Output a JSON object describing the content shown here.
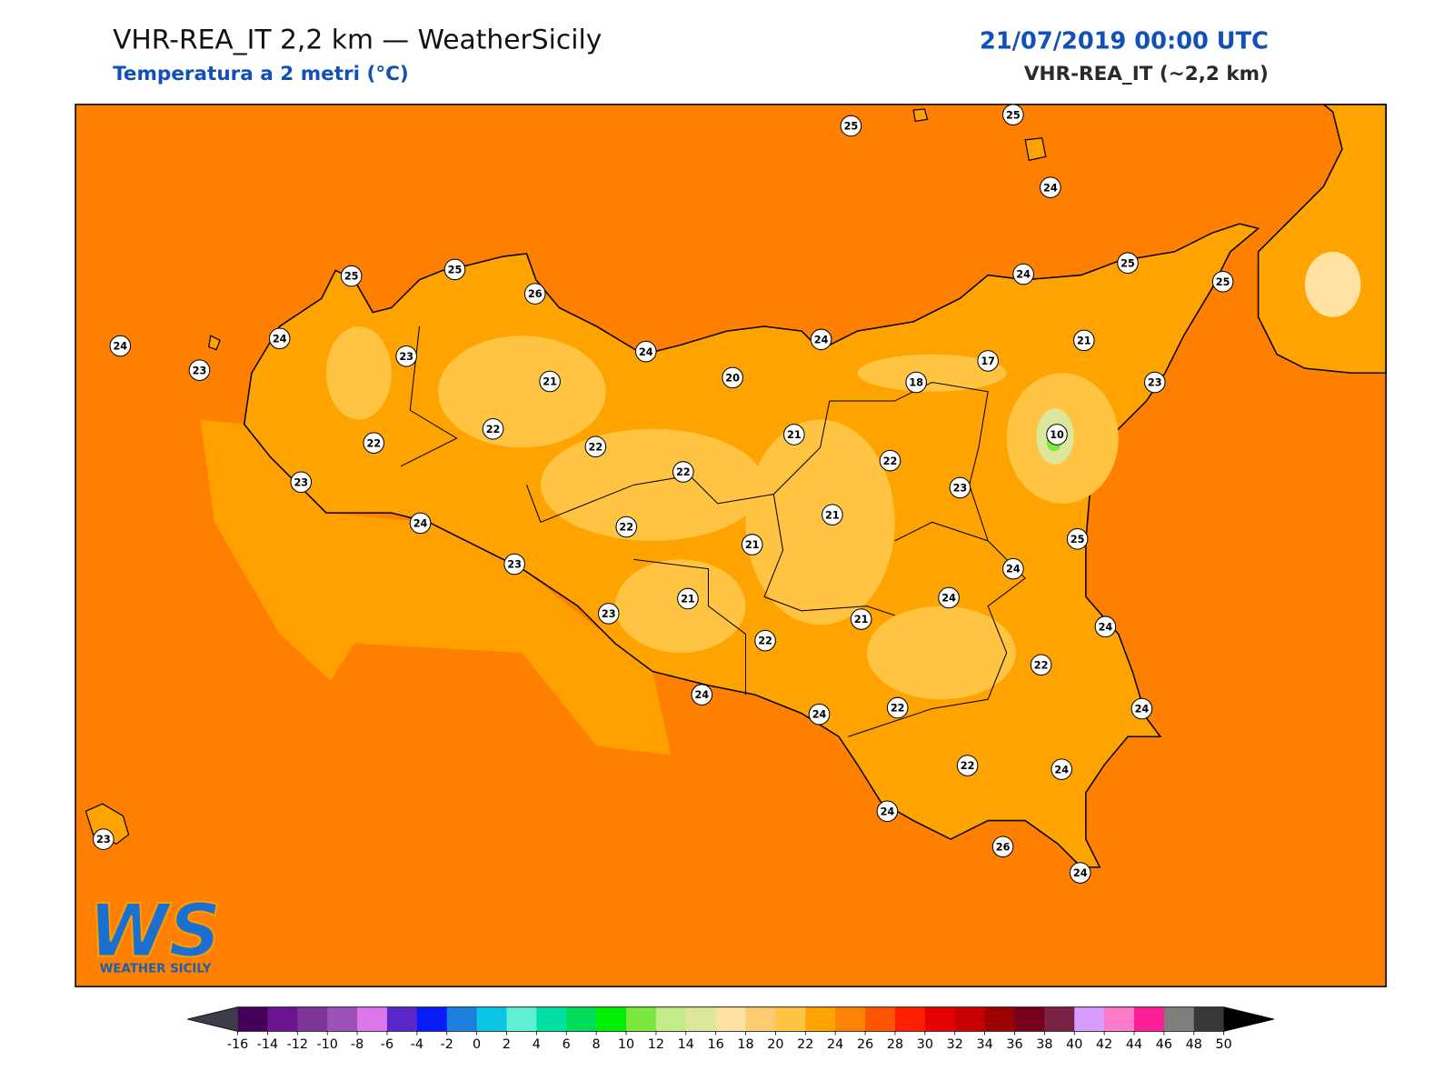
{
  "header": {
    "title": "VHR-REA_IT 2,2 km — WeatherSicily",
    "subtitle": "Temperatura a 2 metri (°C)",
    "date": "21/07/2019 00:00 UTC",
    "model": "VHR-REA_IT (~2,2 km)"
  },
  "stations": [
    25,
    25,
    24,
    25,
    25,
    26,
    24,
    23,
    24,
    23,
    21,
    24,
    20,
    24,
    24,
    25,
    25,
    21,
    17,
    18,
    23,
    10,
    22,
    22,
    22,
    22,
    21,
    22,
    23,
    23,
    24,
    22,
    21,
    21,
    25,
    24,
    23,
    24,
    23,
    21,
    21,
    24,
    22,
    22,
    24,
    24,
    22,
    24,
    22,
    24,
    24,
    26,
    24,
    23
  ],
  "colorbar": {
    "ticks": [
      -16,
      -14,
      -12,
      -10,
      -8,
      -6,
      -4,
      -2,
      0,
      2,
      4,
      6,
      8,
      10,
      12,
      14,
      16,
      18,
      20,
      22,
      24,
      26,
      28,
      30,
      32,
      34,
      36,
      38,
      40,
      42,
      44,
      46,
      48,
      50
    ],
    "colors": [
      "#45005a",
      "#6a1490",
      "#7d3598",
      "#9d52b8",
      "#dc76ea",
      "#5c27c9",
      "#0a1cf5",
      "#1c7fdc",
      "#0bc6e4",
      "#5ff0d4",
      "#00dfa2",
      "#00dc58",
      "#00ee00",
      "#7ae83c",
      "#c3ec88",
      "#dde79c",
      "#ffe2a2",
      "#fdcb72",
      "#ffc542",
      "#ffa300",
      "#ff8300",
      "#ff5400",
      "#ff1e00",
      "#e30000",
      "#c60000",
      "#9c0000",
      "#75001c",
      "#7a2146",
      "#d69cff",
      "#ff7ac8",
      "#ff1e96",
      "#7e7e7e",
      "#383838"
    ],
    "under_color": "#3c3c4c",
    "over_color": "#000000"
  },
  "logo": {
    "mark": "WS",
    "name": "WEATHER SICILY"
  }
}
